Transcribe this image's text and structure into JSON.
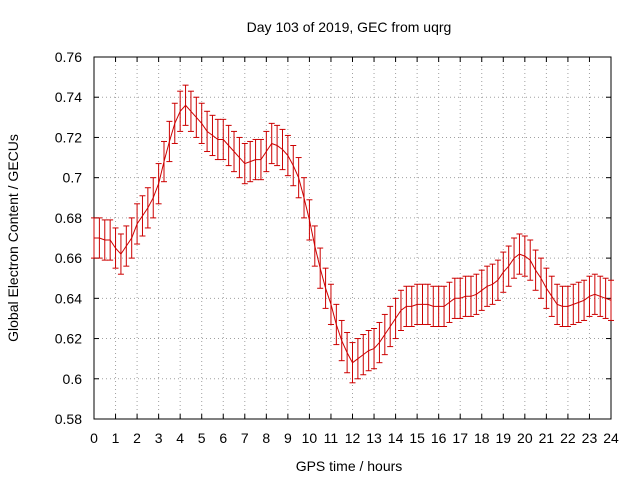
{
  "chart_data": {
    "type": "line",
    "title": "Day 103 of 2019, GEC from uqrg",
    "xlabel": "GPS time / hours",
    "ylabel": "Global Electron Content / GECUs",
    "xlim": [
      0,
      24
    ],
    "ylim": [
      0.58,
      0.76
    ],
    "xticks": [
      "0",
      "1",
      "2",
      "3",
      "4",
      "5",
      "6",
      "7",
      "8",
      "9",
      "10",
      "11",
      "12",
      "13",
      "14",
      "15",
      "16",
      "17",
      "18",
      "19",
      "20",
      "21",
      "22",
      "23",
      "24"
    ],
    "yticks": [
      "0.58",
      "0.6",
      "0.62",
      "0.64",
      "0.66",
      "0.68",
      "0.7",
      "0.72",
      "0.74",
      "0.76"
    ],
    "grid": true,
    "series_color": "#cc0000",
    "series": [
      {
        "name": "GEC",
        "x": [
          0,
          0.25,
          0.5,
          0.75,
          1,
          1.25,
          1.5,
          1.75,
          2,
          2.25,
          2.5,
          2.75,
          3,
          3.25,
          3.5,
          3.75,
          4,
          4.25,
          4.5,
          4.75,
          5,
          5.25,
          5.5,
          5.75,
          6,
          6.25,
          6.5,
          6.75,
          7,
          7.25,
          7.5,
          7.75,
          8,
          8.25,
          8.5,
          8.75,
          9,
          9.25,
          9.5,
          9.75,
          10,
          10.25,
          10.5,
          10.75,
          11,
          11.25,
          11.5,
          11.75,
          12,
          12.25,
          12.5,
          12.75,
          13,
          13.25,
          13.5,
          13.75,
          14,
          14.25,
          14.5,
          14.75,
          15,
          15.25,
          15.5,
          15.75,
          16,
          16.25,
          16.5,
          16.75,
          17,
          17.25,
          17.5,
          17.75,
          18,
          18.25,
          18.5,
          18.75,
          19,
          19.25,
          19.5,
          19.75,
          20,
          20.25,
          20.5,
          20.75,
          21,
          21.25,
          21.5,
          21.75,
          22,
          22.25,
          22.5,
          22.75,
          23,
          23.25,
          23.5,
          23.75,
          24
        ],
        "y": [
          0.67,
          0.67,
          0.669,
          0.669,
          0.665,
          0.662,
          0.666,
          0.67,
          0.677,
          0.681,
          0.685,
          0.69,
          0.697,
          0.708,
          0.718,
          0.727,
          0.733,
          0.736,
          0.733,
          0.73,
          0.727,
          0.723,
          0.721,
          0.719,
          0.719,
          0.716,
          0.713,
          0.71,
          0.707,
          0.708,
          0.709,
          0.709,
          0.713,
          0.717,
          0.716,
          0.714,
          0.711,
          0.706,
          0.7,
          0.69,
          0.679,
          0.666,
          0.655,
          0.645,
          0.637,
          0.627,
          0.619,
          0.613,
          0.608,
          0.61,
          0.612,
          0.614,
          0.615,
          0.618,
          0.622,
          0.626,
          0.63,
          0.634,
          0.636,
          0.636,
          0.637,
          0.637,
          0.637,
          0.636,
          0.636,
          0.636,
          0.638,
          0.64,
          0.64,
          0.641,
          0.641,
          0.642,
          0.644,
          0.646,
          0.647,
          0.649,
          0.653,
          0.656,
          0.66,
          0.662,
          0.661,
          0.659,
          0.654,
          0.65,
          0.645,
          0.641,
          0.637,
          0.636,
          0.636,
          0.637,
          0.638,
          0.639,
          0.641,
          0.642,
          0.641,
          0.64,
          0.639
        ],
        "error": 0.01
      }
    ]
  }
}
